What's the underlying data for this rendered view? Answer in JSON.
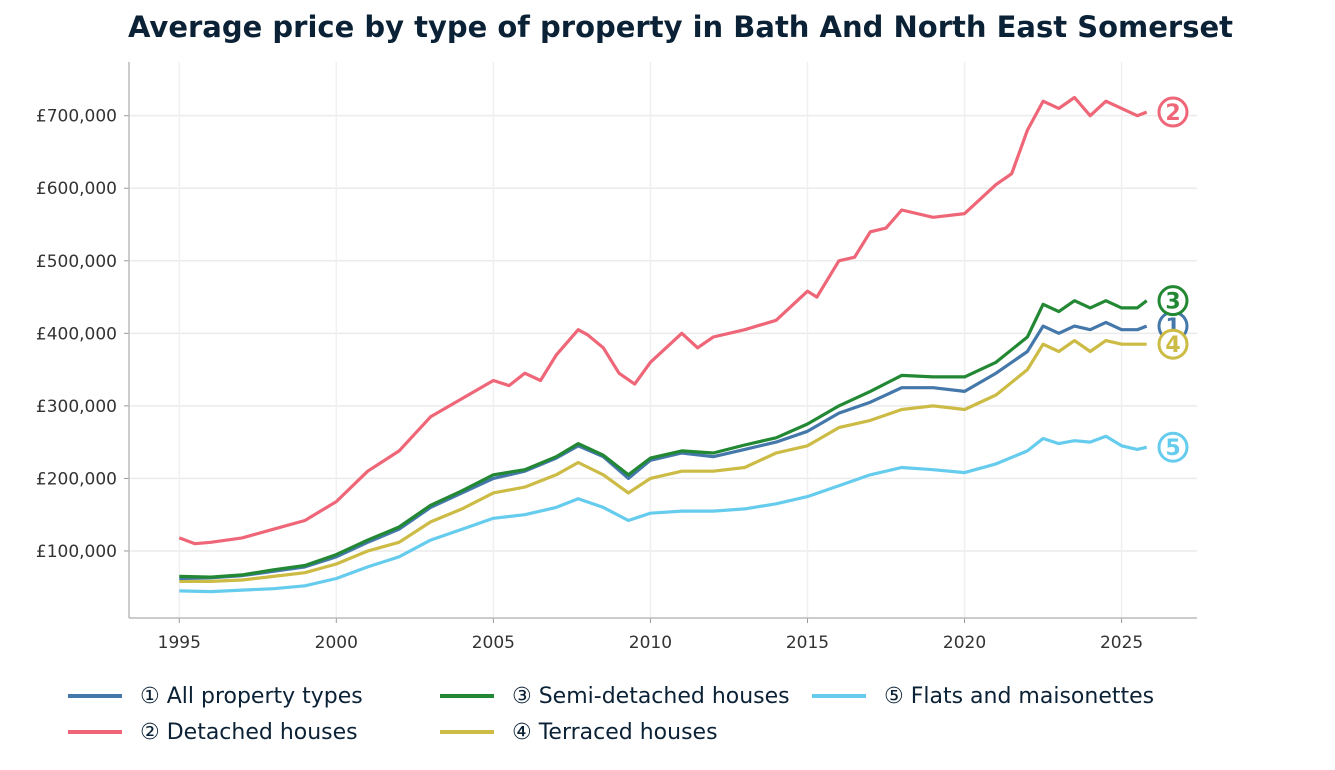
{
  "chart_data": {
    "type": "line",
    "title": "Average price by type of property in Bath And North East Somerset",
    "xlabel": "",
    "ylabel": "",
    "xlim": [
      1993.4,
      2027.4
    ],
    "ylim": [
      7600,
      774000
    ],
    "x_ticks": [
      1995,
      2000,
      2005,
      2010,
      2015,
      2020,
      2025
    ],
    "x_tick_labels": [
      "1995",
      "2000",
      "2005",
      "2010",
      "2015",
      "2020",
      "2025"
    ],
    "y_ticks": [
      100000,
      200000,
      300000,
      400000,
      500000,
      600000,
      700000
    ],
    "y_tick_labels": [
      "£100,000",
      "£200,000",
      "£300,000",
      "£400,000",
      "£500,000",
      "£600,000",
      "£700,000"
    ],
    "grid": true,
    "legend_position": "bottom",
    "series": [
      {
        "name": "① All property types",
        "marker": "1",
        "color": "#4477aa",
        "points": [
          [
            1995,
            62000
          ],
          [
            1996,
            63000
          ],
          [
            1997,
            66000
          ],
          [
            1998,
            72000
          ],
          [
            1999,
            78000
          ],
          [
            2000,
            92000
          ],
          [
            2001,
            112000
          ],
          [
            2002,
            130000
          ],
          [
            2003,
            160000
          ],
          [
            2004,
            180000
          ],
          [
            2005,
            200000
          ],
          [
            2006,
            210000
          ],
          [
            2007,
            228000
          ],
          [
            2007.7,
            245000
          ],
          [
            2008.5,
            230000
          ],
          [
            2009.3,
            200000
          ],
          [
            2010,
            225000
          ],
          [
            2011,
            235000
          ],
          [
            2012,
            230000
          ],
          [
            2013,
            240000
          ],
          [
            2014,
            250000
          ],
          [
            2015,
            265000
          ],
          [
            2016,
            290000
          ],
          [
            2017,
            305000
          ],
          [
            2018,
            325000
          ],
          [
            2019,
            325000
          ],
          [
            2020,
            320000
          ],
          [
            2021,
            345000
          ],
          [
            2022,
            375000
          ],
          [
            2022.5,
            410000
          ],
          [
            2023,
            400000
          ],
          [
            2023.5,
            410000
          ],
          [
            2024,
            405000
          ],
          [
            2024.5,
            415000
          ],
          [
            2025,
            405000
          ],
          [
            2025.5,
            405000
          ],
          [
            2025.8,
            410000
          ]
        ]
      },
      {
        "name": "② Detached houses",
        "marker": "2",
        "color": "#ee6677",
        "points": [
          [
            1995,
            118000
          ],
          [
            1995.5,
            110000
          ],
          [
            1996,
            112000
          ],
          [
            1997,
            118000
          ],
          [
            1998,
            130000
          ],
          [
            1999,
            142000
          ],
          [
            2000,
            168000
          ],
          [
            2001,
            210000
          ],
          [
            2002,
            238000
          ],
          [
            2003,
            285000
          ],
          [
            2004,
            310000
          ],
          [
            2005,
            335000
          ],
          [
            2005.5,
            328000
          ],
          [
            2006,
            345000
          ],
          [
            2006.5,
            335000
          ],
          [
            2007,
            370000
          ],
          [
            2007.7,
            405000
          ],
          [
            2008,
            398000
          ],
          [
            2008.5,
            380000
          ],
          [
            2009,
            345000
          ],
          [
            2009.5,
            330000
          ],
          [
            2010,
            360000
          ],
          [
            2011,
            400000
          ],
          [
            2011.5,
            380000
          ],
          [
            2012,
            395000
          ],
          [
            2013,
            405000
          ],
          [
            2014,
            418000
          ],
          [
            2015,
            458000
          ],
          [
            2015.3,
            450000
          ],
          [
            2016,
            500000
          ],
          [
            2016.5,
            505000
          ],
          [
            2017,
            540000
          ],
          [
            2017.5,
            545000
          ],
          [
            2018,
            570000
          ],
          [
            2019,
            560000
          ],
          [
            2020,
            565000
          ],
          [
            2021,
            605000
          ],
          [
            2021.5,
            620000
          ],
          [
            2022,
            680000
          ],
          [
            2022.5,
            720000
          ],
          [
            2023,
            710000
          ],
          [
            2023.5,
            725000
          ],
          [
            2024,
            700000
          ],
          [
            2024.5,
            720000
          ],
          [
            2025,
            710000
          ],
          [
            2025.5,
            700000
          ],
          [
            2025.8,
            705000
          ]
        ]
      },
      {
        "name": "③ Semi-detached houses",
        "marker": "3",
        "color": "#228833",
        "points": [
          [
            1995,
            65000
          ],
          [
            1996,
            64000
          ],
          [
            1997,
            67000
          ],
          [
            1998,
            74000
          ],
          [
            1999,
            80000
          ],
          [
            2000,
            95000
          ],
          [
            2001,
            115000
          ],
          [
            2002,
            133000
          ],
          [
            2003,
            163000
          ],
          [
            2004,
            183000
          ],
          [
            2005,
            205000
          ],
          [
            2006,
            212000
          ],
          [
            2007,
            230000
          ],
          [
            2007.7,
            248000
          ],
          [
            2008.5,
            232000
          ],
          [
            2009.3,
            205000
          ],
          [
            2010,
            228000
          ],
          [
            2011,
            238000
          ],
          [
            2012,
            235000
          ],
          [
            2013,
            246000
          ],
          [
            2014,
            256000
          ],
          [
            2015,
            275000
          ],
          [
            2016,
            300000
          ],
          [
            2017,
            320000
          ],
          [
            2018,
            342000
          ],
          [
            2019,
            340000
          ],
          [
            2020,
            340000
          ],
          [
            2021,
            360000
          ],
          [
            2022,
            395000
          ],
          [
            2022.5,
            440000
          ],
          [
            2023,
            430000
          ],
          [
            2023.5,
            445000
          ],
          [
            2024,
            435000
          ],
          [
            2024.5,
            445000
          ],
          [
            2025,
            435000
          ],
          [
            2025.5,
            435000
          ],
          [
            2025.8,
            445000
          ]
        ]
      },
      {
        "name": "④ Terraced houses",
        "marker": "4",
        "color": "#ccbb44",
        "points": [
          [
            1995,
            58000
          ],
          [
            1996,
            58000
          ],
          [
            1997,
            60000
          ],
          [
            1998,
            65000
          ],
          [
            1999,
            70000
          ],
          [
            2000,
            82000
          ],
          [
            2001,
            100000
          ],
          [
            2002,
            112000
          ],
          [
            2003,
            140000
          ],
          [
            2004,
            158000
          ],
          [
            2005,
            180000
          ],
          [
            2006,
            188000
          ],
          [
            2007,
            205000
          ],
          [
            2007.7,
            222000
          ],
          [
            2008.5,
            205000
          ],
          [
            2009.3,
            180000
          ],
          [
            2010,
            200000
          ],
          [
            2011,
            210000
          ],
          [
            2012,
            210000
          ],
          [
            2013,
            215000
          ],
          [
            2014,
            235000
          ],
          [
            2015,
            245000
          ],
          [
            2016,
            270000
          ],
          [
            2017,
            280000
          ],
          [
            2018,
            295000
          ],
          [
            2019,
            300000
          ],
          [
            2020,
            295000
          ],
          [
            2021,
            315000
          ],
          [
            2022,
            350000
          ],
          [
            2022.5,
            385000
          ],
          [
            2023,
            375000
          ],
          [
            2023.5,
            390000
          ],
          [
            2024,
            375000
          ],
          [
            2024.5,
            390000
          ],
          [
            2025,
            385000
          ],
          [
            2025.5,
            385000
          ],
          [
            2025.8,
            385000
          ]
        ]
      },
      {
        "name": "⑤ Flats and maisonettes",
        "marker": "5",
        "color": "#66ccee",
        "points": [
          [
            1995,
            45000
          ],
          [
            1996,
            44000
          ],
          [
            1997,
            46000
          ],
          [
            1998,
            48000
          ],
          [
            1999,
            52000
          ],
          [
            2000,
            62000
          ],
          [
            2001,
            78000
          ],
          [
            2002,
            92000
          ],
          [
            2003,
            115000
          ],
          [
            2004,
            130000
          ],
          [
            2005,
            145000
          ],
          [
            2006,
            150000
          ],
          [
            2007,
            160000
          ],
          [
            2007.7,
            172000
          ],
          [
            2008.5,
            160000
          ],
          [
            2009.3,
            142000
          ],
          [
            2010,
            152000
          ],
          [
            2011,
            155000
          ],
          [
            2012,
            155000
          ],
          [
            2013,
            158000
          ],
          [
            2014,
            165000
          ],
          [
            2015,
            175000
          ],
          [
            2016,
            190000
          ],
          [
            2017,
            205000
          ],
          [
            2018,
            215000
          ],
          [
            2019,
            212000
          ],
          [
            2020,
            208000
          ],
          [
            2021,
            220000
          ],
          [
            2022,
            238000
          ],
          [
            2022.5,
            255000
          ],
          [
            2023,
            248000
          ],
          [
            2023.5,
            252000
          ],
          [
            2024,
            250000
          ],
          [
            2024.5,
            258000
          ],
          [
            2025,
            245000
          ],
          [
            2025.5,
            240000
          ],
          [
            2025.8,
            243000
          ]
        ]
      }
    ]
  }
}
